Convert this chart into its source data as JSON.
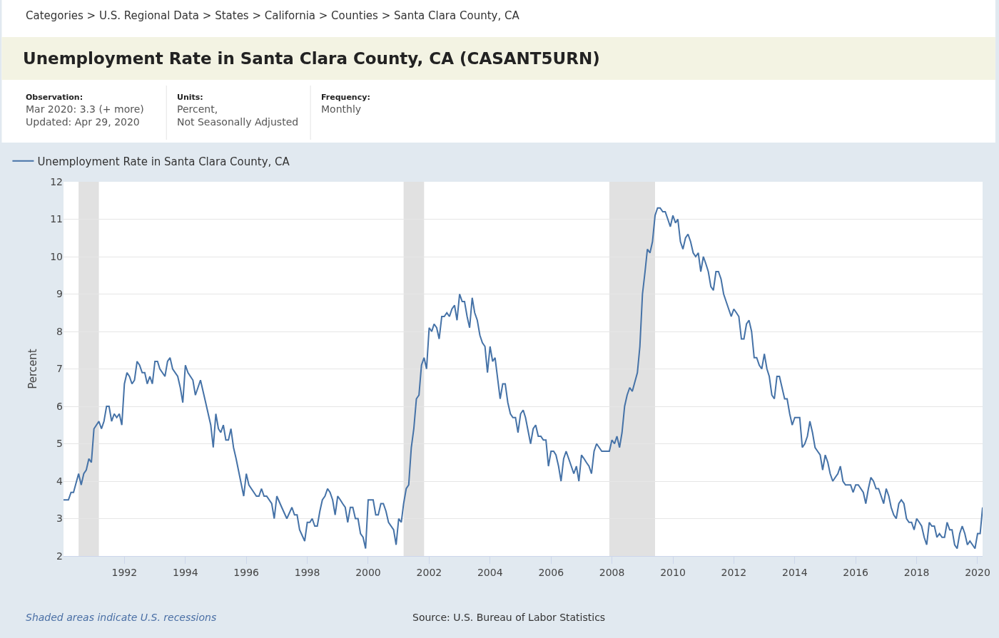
{
  "chart_data": {
    "type": "line",
    "title": "Unemployment Rate in Santa Clara County, CA (CASANT5URN)",
    "ylabel": "Percent",
    "annotations": [
      "Categories > U.S. Regional Data > States > California > Counties > Santa Clara County, CA",
      "Observation:\nMar 2020: 3.3 (+ more)\nUpdated: Apr 29, 2020",
      "Units:\nPercent,\nNot Seasonally Adjusted",
      "Frequency:\nMonthly",
      "Shaded areas indicate U.S. recessions",
      "Source: U.S. Bureau of Labor Statistics"
    ],
    "series": [
      {
        "name": "Unemployment Rate in Santa Clara County, CA",
        "color": "#4572a7",
        "x": [
          "1990-01",
          "1990-03",
          "1990-04",
          "1990-05",
          "1990-07",
          "1990-08",
          "1990-09",
          "1990-10",
          "1990-11",
          "1990-12",
          "1991-01",
          "1991-03",
          "1991-04",
          "1991-05",
          "1991-06",
          "1991-07",
          "1991-08",
          "1991-09",
          "1991-10",
          "1991-11",
          "1991-12",
          "1992-01",
          "1992-02",
          "1992-03",
          "1992-04",
          "1992-05",
          "1992-06",
          "1992-07",
          "1992-08",
          "1992-09",
          "1992-10",
          "1992-11",
          "1992-12",
          "1993-01",
          "1993-02",
          "1993-03",
          "1993-05",
          "1993-06",
          "1993-07",
          "1993-08",
          "1993-10",
          "1993-11",
          "1993-12",
          "1994-01",
          "1994-02",
          "1994-04",
          "1994-05",
          "1994-07",
          "1994-09",
          "1994-11",
          "1994-12",
          "1995-01",
          "1995-02",
          "1995-03",
          "1995-04",
          "1995-05",
          "1995-06",
          "1995-07",
          "1995-08",
          "1995-09",
          "1995-12",
          "1996-01",
          "1996-02",
          "1996-04",
          "1996-05",
          "1996-06",
          "1996-07",
          "1996-08",
          "1996-09",
          "1996-11",
          "1996-12",
          "1997-01",
          "1997-03",
          "1997-05",
          "1997-07",
          "1997-08",
          "1997-09",
          "1997-10",
          "1997-12",
          "1998-01",
          "1998-02",
          "1998-03",
          "1998-04",
          "1998-05",
          "1998-06",
          "1998-07",
          "1998-08",
          "1998-09",
          "1998-10",
          "1998-11",
          "1998-12",
          "1999-01",
          "1999-02",
          "1999-03",
          "1999-04",
          "1999-05",
          "1999-06",
          "1999-07",
          "1999-08",
          "1999-09",
          "1999-10",
          "1999-11",
          "1999-12",
          "2000-01",
          "2000-03",
          "2000-04",
          "2000-05",
          "2000-06",
          "2000-07",
          "2000-08",
          "2000-09",
          "2000-11",
          "2000-12",
          "2001-01",
          "2001-02",
          "2001-03",
          "2001-04",
          "2001-05",
          "2001-06",
          "2001-07",
          "2001-08",
          "2001-09",
          "2001-10",
          "2001-11",
          "2001-12",
          "2002-01",
          "2002-02",
          "2002-03",
          "2002-04",
          "2002-05",
          "2002-06",
          "2002-07",
          "2002-08",
          "2002-09",
          "2002-10",
          "2002-11",
          "2002-12",
          "2003-01",
          "2003-02",
          "2003-03",
          "2003-04",
          "2003-05",
          "2003-06",
          "2003-07",
          "2003-08",
          "2003-09",
          "2003-10",
          "2003-11",
          "2003-12",
          "2004-01",
          "2004-02",
          "2004-03",
          "2004-05",
          "2004-06",
          "2004-07",
          "2004-08",
          "2004-09",
          "2004-10",
          "2004-11",
          "2004-12",
          "2005-01",
          "2005-02",
          "2005-03",
          "2005-05",
          "2005-06",
          "2005-07",
          "2005-08",
          "2005-09",
          "2005-10",
          "2005-11",
          "2005-12",
          "2006-01",
          "2006-02",
          "2006-03",
          "2006-04",
          "2006-05",
          "2006-06",
          "2006-07",
          "2006-08",
          "2006-09",
          "2006-10",
          "2006-11",
          "2006-12",
          "2007-01",
          "2007-02",
          "2007-03",
          "2007-04",
          "2007-05",
          "2007-06",
          "2007-07",
          "2007-08",
          "2007-09",
          "2007-12",
          "2008-01",
          "2008-02",
          "2008-03",
          "2008-04",
          "2008-05",
          "2008-06",
          "2008-07",
          "2008-08",
          "2008-09",
          "2008-11",
          "2008-12",
          "2009-01",
          "2009-02",
          "2009-03",
          "2009-04",
          "2009-05",
          "2009-06",
          "2009-07",
          "2009-08",
          "2009-09",
          "2009-10",
          "2009-11",
          "2009-12",
          "2010-01",
          "2010-02",
          "2010-03",
          "2010-04",
          "2010-05",
          "2010-06",
          "2010-07",
          "2010-08",
          "2010-09",
          "2010-10",
          "2010-11",
          "2010-12",
          "2011-01",
          "2011-02",
          "2011-03",
          "2011-04",
          "2011-05",
          "2011-06",
          "2011-07",
          "2011-08",
          "2011-09",
          "2011-10",
          "2011-12",
          "2012-01",
          "2012-02",
          "2012-03",
          "2012-04",
          "2012-05",
          "2012-06",
          "2012-07",
          "2012-08",
          "2012-09",
          "2012-10",
          "2012-11",
          "2012-12",
          "2013-01",
          "2013-02",
          "2013-03",
          "2013-04",
          "2013-05",
          "2013-06",
          "2013-07",
          "2013-08",
          "2013-09",
          "2013-10",
          "2013-11",
          "2013-12",
          "2014-01",
          "2014-03",
          "2014-04",
          "2014-05",
          "2014-06",
          "2014-07",
          "2014-08",
          "2014-09",
          "2014-10",
          "2014-11",
          "2014-12",
          "2015-01",
          "2015-02",
          "2015-03",
          "2015-04",
          "2015-05",
          "2015-06",
          "2015-07",
          "2015-08",
          "2015-09",
          "2015-11",
          "2015-12",
          "2016-01",
          "2016-02",
          "2016-04",
          "2016-05",
          "2016-06",
          "2016-07",
          "2016-08",
          "2016-09",
          "2016-10",
          "2016-11",
          "2016-12",
          "2017-01",
          "2017-02",
          "2017-03",
          "2017-04",
          "2017-05",
          "2017-06",
          "2017-07",
          "2017-08",
          "2017-09",
          "2017-10",
          "2017-11",
          "2017-12",
          "2018-01",
          "2018-02",
          "2018-03",
          "2018-04",
          "2018-05",
          "2018-06",
          "2018-07",
          "2018-08",
          "2018-09",
          "2018-10",
          "2018-11",
          "2018-12",
          "2019-01",
          "2019-02",
          "2019-03",
          "2019-04",
          "2019-05",
          "2019-06",
          "2019-07",
          "2019-08",
          "2019-09",
          "2019-10",
          "2019-11",
          "2019-12",
          "2020-01",
          "2020-02",
          "2020-03"
        ],
        "values": [
          3.5,
          3.5,
          3.7,
          3.7,
          4.2,
          3.9,
          4.2,
          4.3,
          4.6,
          4.5,
          5.4,
          5.6,
          5.4,
          5.6,
          6.0,
          6.0,
          5.6,
          5.8,
          5.7,
          5.8,
          5.5,
          6.6,
          6.9,
          6.8,
          6.6,
          6.7,
          7.2,
          7.1,
          6.9,
          6.9,
          6.6,
          6.8,
          6.6,
          7.2,
          7.2,
          7.0,
          6.8,
          7.2,
          7.3,
          7.0,
          6.8,
          6.5,
          6.1,
          7.1,
          6.9,
          6.7,
          6.3,
          6.7,
          6.1,
          5.5,
          4.9,
          5.8,
          5.4,
          5.3,
          5.5,
          5.1,
          5.1,
          5.4,
          4.9,
          4.6,
          3.6,
          4.2,
          3.9,
          3.7,
          3.6,
          3.6,
          3.8,
          3.6,
          3.6,
          3.4,
          3.0,
          3.6,
          3.3,
          3.0,
          3.3,
          3.1,
          3.1,
          2.7,
          2.4,
          2.9,
          2.9,
          3.0,
          2.8,
          2.8,
          3.2,
          3.5,
          3.6,
          3.8,
          3.7,
          3.5,
          3.1,
          3.6,
          3.5,
          3.4,
          3.3,
          2.9,
          3.3,
          3.3,
          3.0,
          3.0,
          2.6,
          2.5,
          2.2,
          3.5,
          3.5,
          3.1,
          3.1,
          3.4,
          3.4,
          3.2,
          2.9,
          2.7,
          2.3,
          3.0,
          2.9,
          3.4,
          3.8,
          3.9,
          4.9,
          5.4,
          6.2,
          6.3,
          7.1,
          7.3,
          7.0,
          8.1,
          8.0,
          8.2,
          8.1,
          7.8,
          8.4,
          8.4,
          8.5,
          8.4,
          8.6,
          8.7,
          8.3,
          9.0,
          8.8,
          8.8,
          8.4,
          8.1,
          8.9,
          8.5,
          8.3,
          7.9,
          7.7,
          7.6,
          6.9,
          7.6,
          7.2,
          7.3,
          6.2,
          6.6,
          6.6,
          6.1,
          5.8,
          5.7,
          5.7,
          5.3,
          5.8,
          5.9,
          5.7,
          5.0,
          5.4,
          5.5,
          5.2,
          5.2,
          5.1,
          5.1,
          4.4,
          4.8,
          4.8,
          4.7,
          4.4,
          4.0,
          4.6,
          4.8,
          4.6,
          4.4,
          4.2,
          4.4,
          4.0,
          4.7,
          4.6,
          4.5,
          4.4,
          4.2,
          4.8,
          5.0,
          4.9,
          4.8,
          4.8,
          5.1,
          5.0,
          5.2,
          4.9,
          5.3,
          6.0,
          6.3,
          6.5,
          6.4,
          6.9,
          7.6,
          9.0,
          9.6,
          10.2,
          10.1,
          10.4,
          11.1,
          11.3,
          11.3,
          11.2,
          11.2,
          11.0,
          10.8,
          11.1,
          10.9,
          11.0,
          10.4,
          10.2,
          10.5,
          10.6,
          10.4,
          10.1,
          10.0,
          10.1,
          9.6,
          10.0,
          9.8,
          9.6,
          9.2,
          9.1,
          9.6,
          9.6,
          9.4,
          9.0,
          8.8,
          8.4,
          8.6,
          8.5,
          8.4,
          7.8,
          7.8,
          8.2,
          8.3,
          8.0,
          7.3,
          7.3,
          7.1,
          7.0,
          7.4,
          7.0,
          6.8,
          6.3,
          6.2,
          6.8,
          6.8,
          6.5,
          6.2,
          6.2,
          5.8,
          5.5,
          5.7,
          5.7,
          4.9,
          5.0,
          5.2,
          5.6,
          5.3,
          4.9,
          4.8,
          4.7,
          4.3,
          4.7,
          4.5,
          4.2,
          4.0,
          4.1,
          4.2,
          4.4,
          4.0,
          3.9,
          3.9,
          3.7,
          3.9,
          3.9,
          3.7,
          3.4,
          3.8,
          4.1,
          4.0,
          3.8,
          3.8,
          3.6,
          3.4,
          3.8,
          3.6,
          3.3,
          3.1,
          3.0,
          3.4,
          3.5,
          3.4,
          3.0,
          2.9,
          2.9,
          2.7,
          3.0,
          2.9,
          2.8,
          2.5,
          2.3,
          2.9,
          2.8,
          2.8,
          2.5,
          2.6,
          2.5,
          2.5,
          2.9,
          2.7,
          2.7,
          2.3,
          2.2,
          2.6,
          2.8,
          2.6,
          2.3,
          2.4,
          2.3,
          2.2,
          2.6,
          2.6,
          3.3
        ]
      }
    ],
    "xlim": [
      "1990-01",
      "2020-03"
    ],
    "xticks": [
      "1992",
      "1994",
      "1996",
      "1998",
      "2000",
      "2002",
      "2004",
      "2006",
      "2008",
      "2010",
      "2012",
      "2014",
      "2016",
      "2018",
      "2020"
    ],
    "ylim": [
      2,
      12
    ],
    "yticks": [
      2,
      3,
      4,
      5,
      6,
      7,
      8,
      9,
      10,
      11,
      12
    ],
    "bands": [
      {
        "axis": "x",
        "from": "1990-07",
        "to": "1991-03",
        "color": "#e1e1e1"
      },
      {
        "axis": "x",
        "from": "2001-03",
        "to": "2001-11",
        "color": "#e1e1e1"
      },
      {
        "axis": "x",
        "from": "2007-12",
        "to": "2009-06",
        "color": "#e1e1e1"
      }
    ],
    "grid": "y",
    "legend": "top left"
  }
}
